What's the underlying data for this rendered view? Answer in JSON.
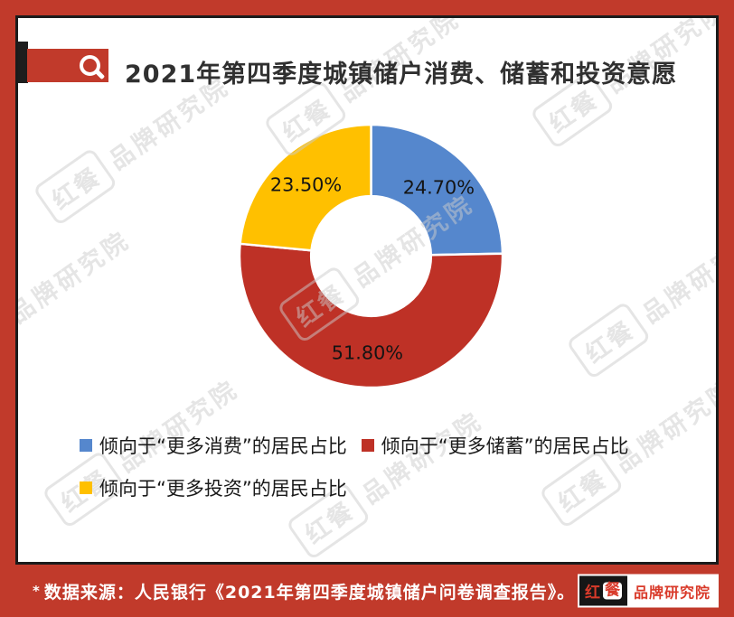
{
  "header": {
    "title": "2021年第四季度城镇储户消费、储蓄和投资意愿",
    "icon": "magnifier-icon"
  },
  "chart_data": {
    "type": "pie",
    "subtype": "donut",
    "title": "2021年第四季度城镇储户消费、储蓄和投资意愿",
    "categories": [
      "倾向于“更多消费”的居民占比",
      "倾向于“更多储蓄”的居民占比",
      "倾向于“更多投资”的居民占比"
    ],
    "values": [
      24.7,
      51.8,
      23.5
    ],
    "labels": [
      "24.70%",
      "51.80%",
      "23.50%"
    ],
    "colors": [
      "#5587CD",
      "#BE3126",
      "#FFC000"
    ],
    "start_angle_deg": 0,
    "direction": "clockwise",
    "inner_radius_ratio": 0.45,
    "slice_border_color": "#FFFFFF",
    "legend_position": "bottom"
  },
  "legend": {
    "items": [
      {
        "label": "倾向于“更多消费”的居民占比",
        "color": "#5587CD"
      },
      {
        "label": "倾向于“更多储蓄”的居民占比",
        "color": "#BE3126"
      },
      {
        "label": "倾向于“更多投资”的居民占比",
        "color": "#FFC000"
      }
    ]
  },
  "watermark": {
    "box_text": "红餐",
    "text": "品牌研究院"
  },
  "footer": {
    "marker": "*",
    "source_text": "数据来源：人民银行《2021年第四季度城镇储户问卷调查报告》。",
    "logo": {
      "hong": "红",
      "can": "餐",
      "suffix": "品牌研究院"
    }
  },
  "colors": {
    "frame_red": "#C13A2B",
    "panel_border": "#1B1B1B",
    "title_text": "#303030",
    "label_text": "#141414",
    "footer_text": "#FFFFFF",
    "logo_red": "#D93A2A"
  }
}
